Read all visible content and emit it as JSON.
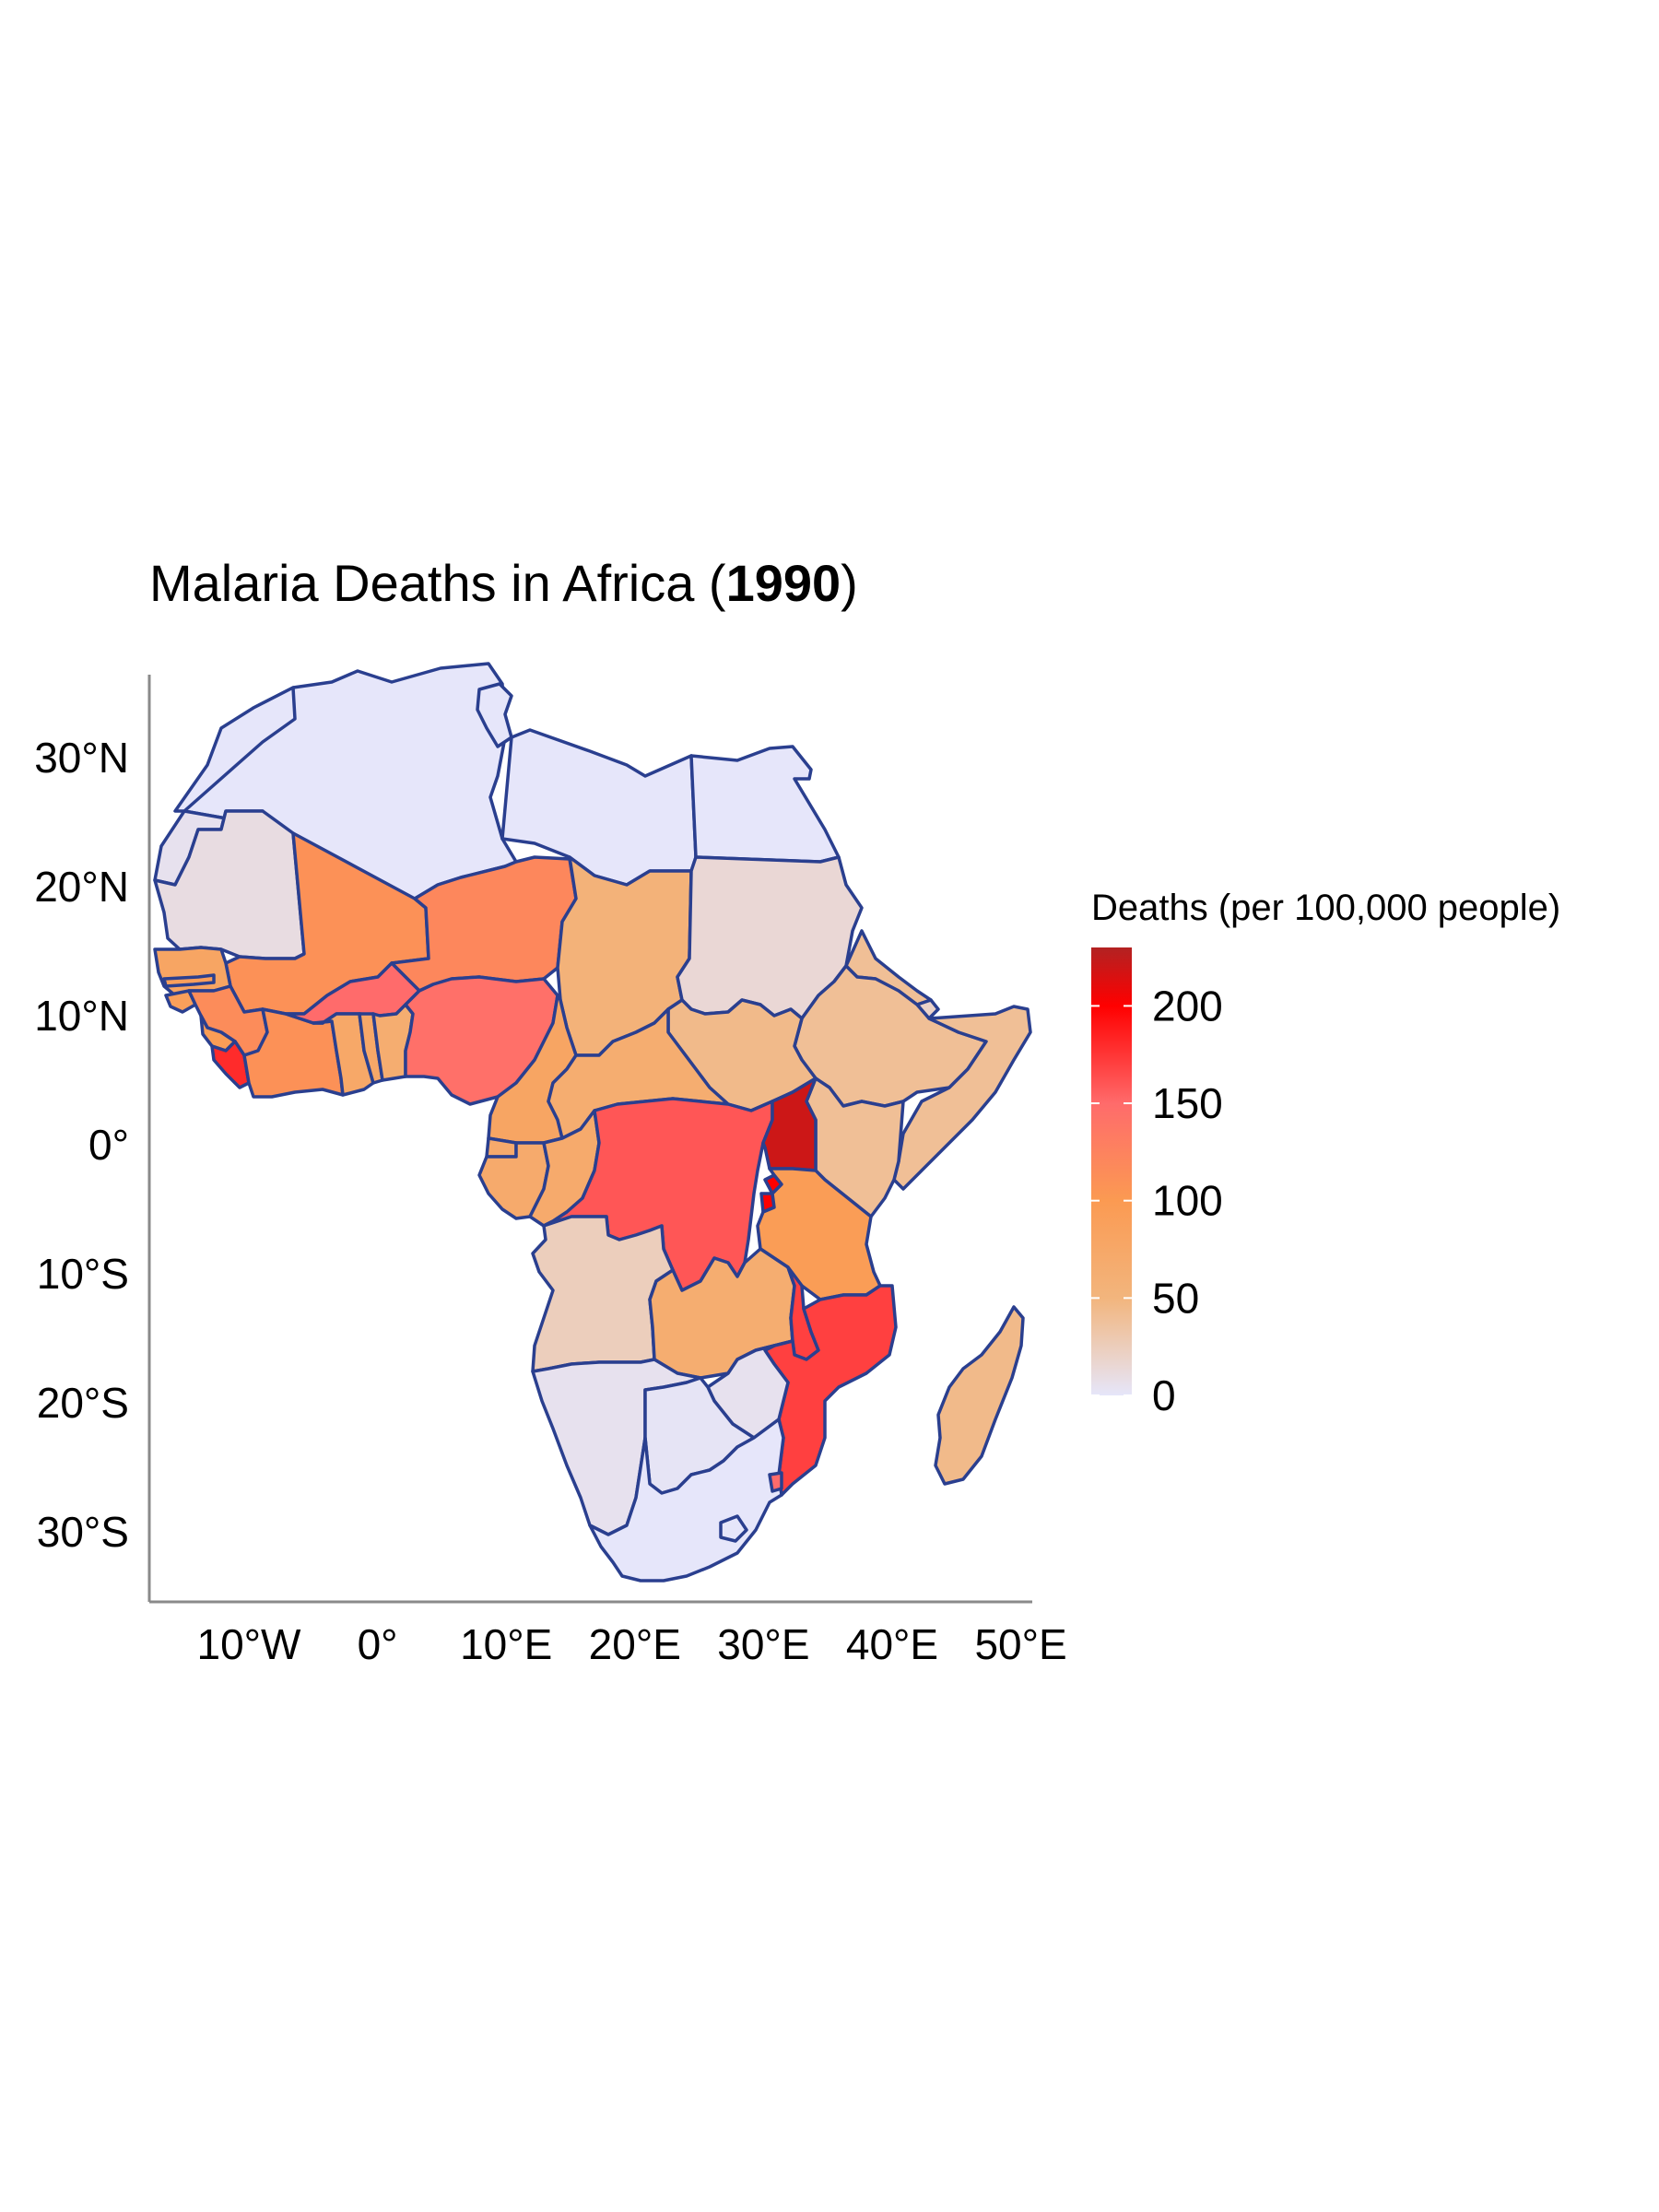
{
  "title": {
    "prefix": "Malaria Deaths in Africa (",
    "year": "1990",
    "suffix": ")"
  },
  "chart_data": {
    "type": "choropleth",
    "title": "Malaria Deaths in Africa (1990)",
    "legend": {
      "title": "Deaths (per 100,000 people)",
      "position": "right",
      "breaks": [
        "0",
        "50",
        "100",
        "150",
        "200"
      ],
      "range": [
        0,
        230
      ],
      "colors": [
        "#e6e6fa",
        "#f2b57d",
        "#fb9a52",
        "#ff6b6b",
        "#ff0000",
        "#b22222"
      ]
    },
    "x_ticks": [
      "10°W",
      "0°",
      "10°E",
      "20°E",
      "30°E",
      "40°E",
      "50°E"
    ],
    "y_ticks": [
      "30°N",
      "20°N",
      "10°N",
      "0°",
      "10°S",
      "20°S",
      "30°S"
    ],
    "x_range": [
      -18,
      51
    ],
    "y_range": [
      -35,
      37
    ],
    "grid": false,
    "regions": [
      {
        "id": "morocco",
        "deaths": 0
      },
      {
        "id": "algeria",
        "deaths": 0
      },
      {
        "id": "tunisia",
        "deaths": 0
      },
      {
        "id": "libya",
        "deaths": 0
      },
      {
        "id": "egypt",
        "deaths": 0
      },
      {
        "id": "w-sahara",
        "deaths": 5
      },
      {
        "id": "mauritania",
        "deaths": 10
      },
      {
        "id": "mali",
        "deaths": 110
      },
      {
        "id": "niger",
        "deaths": 120
      },
      {
        "id": "chad",
        "deaths": 55
      },
      {
        "id": "sudan",
        "deaths": 15
      },
      {
        "id": "senegal",
        "deaths": 80
      },
      {
        "id": "gambia",
        "deaths": 90
      },
      {
        "id": "guinea-bissau",
        "deaths": 90
      },
      {
        "id": "guinea",
        "deaths": 115
      },
      {
        "id": "sierra-leone",
        "deaths": 95
      },
      {
        "id": "liberia",
        "deaths": 180
      },
      {
        "id": "cote-divoire",
        "deaths": 110
      },
      {
        "id": "burkina-faso",
        "deaths": 150
      },
      {
        "id": "ghana",
        "deaths": 75
      },
      {
        "id": "togo",
        "deaths": 75
      },
      {
        "id": "benin",
        "deaths": 65
      },
      {
        "id": "nigeria",
        "deaths": 145
      },
      {
        "id": "cameroon",
        "deaths": 80
      },
      {
        "id": "car",
        "deaths": 65
      },
      {
        "id": "south-sudan",
        "deaths": 45
      },
      {
        "id": "ethiopia",
        "deaths": 40
      },
      {
        "id": "eritrea",
        "deaths": 40
      },
      {
        "id": "djibouti",
        "deaths": 20
      },
      {
        "id": "somalia",
        "deaths": 40
      },
      {
        "id": "kenya",
        "deaths": 40
      },
      {
        "id": "uganda",
        "deaths": 220
      },
      {
        "id": "rwanda",
        "deaths": 200
      },
      {
        "id": "burundi",
        "deaths": 200
      },
      {
        "id": "eq-guinea",
        "deaths": 70
      },
      {
        "id": "gabon",
        "deaths": 70
      },
      {
        "id": "congo",
        "deaths": 70
      },
      {
        "id": "drc",
        "deaths": 160
      },
      {
        "id": "tanzania",
        "deaths": 95
      },
      {
        "id": "angola",
        "deaths": 25
      },
      {
        "id": "zambia",
        "deaths": 65
      },
      {
        "id": "malawi",
        "deaths": 170
      },
      {
        "id": "mozambique",
        "deaths": 170
      },
      {
        "id": "zimbabwe",
        "deaths": 5
      },
      {
        "id": "namibia",
        "deaths": 5
      },
      {
        "id": "botswana",
        "deaths": 2
      },
      {
        "id": "south-africa",
        "deaths": 0
      },
      {
        "id": "lesotho",
        "deaths": 0
      },
      {
        "id": "swaziland",
        "deaths": 150
      },
      {
        "id": "madagascar",
        "deaths": 45
      }
    ]
  }
}
